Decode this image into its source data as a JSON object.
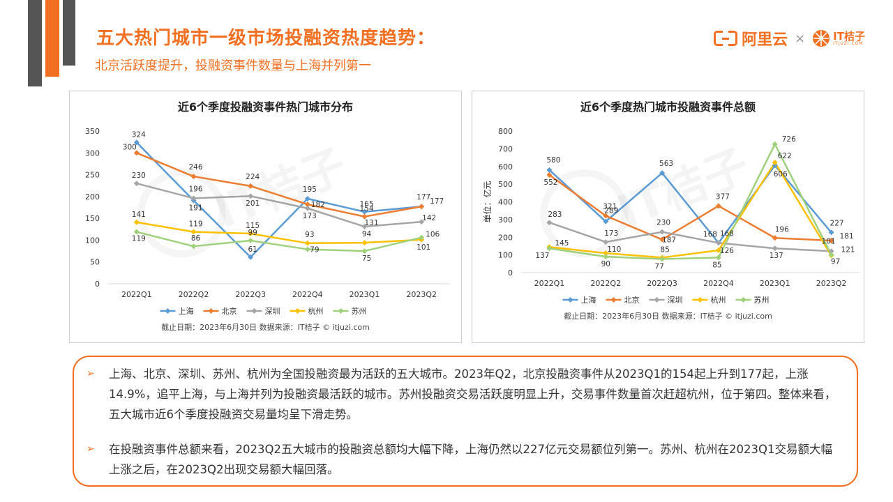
{
  "header": {
    "title": "五大热门城市一级市场投融资热度趋势：",
    "subtitle": "北京活跃度提升，投融资事件数量与上海并列第一"
  },
  "logos": {
    "aliyun": "阿里云",
    "times": "×",
    "itjuzi": "IT桔子",
    "itjuzi_url": "ITJUZI.COM"
  },
  "watermark": "IT桔子",
  "colors": {
    "accent": "#f36f21",
    "dark_bar": "#555555",
    "series": [
      "#5b9bd5",
      "#ed7d31",
      "#a5a5a5",
      "#ffc000",
      "#9fd17c"
    ]
  },
  "chart_data": [
    {
      "type": "line",
      "title": "近6个季度投融资事件热门城市分布",
      "categories": [
        "2022Q1",
        "2022Q2",
        "2022Q3",
        "2022Q4",
        "2023Q1",
        "2023Q2"
      ],
      "ylim": [
        0,
        350
      ],
      "yticks": [
        0,
        50,
        100,
        150,
        200,
        250,
        300,
        350
      ],
      "grid": false,
      "legend": "bottom",
      "series": [
        {
          "name": "上海",
          "values": [
            324,
            191,
            61,
            195,
            165,
            177
          ]
        },
        {
          "name": "北京",
          "values": [
            300,
            246,
            224,
            182,
            154,
            177
          ]
        },
        {
          "name": "深圳",
          "values": [
            230,
            196,
            201,
            173,
            131,
            142
          ]
        },
        {
          "name": "杭州",
          "values": [
            141,
            119,
            115,
            93,
            94,
            101
          ]
        },
        {
          "name": "苏州",
          "values": [
            119,
            86,
            99,
            79,
            75,
            106
          ]
        }
      ],
      "footnote": "截止日期：2023年6月30日    数据来源：IT桔子 © itjuzi.com"
    },
    {
      "type": "line",
      "title": "近6个季度热门城市投融资事件总额",
      "categories": [
        "2022Q1",
        "2022Q2",
        "2022Q3",
        "2022Q4",
        "2023Q1",
        "2023Q2"
      ],
      "ylabel": "单位：亿元",
      "ylim": [
        0,
        800
      ],
      "yticks": [
        0,
        100,
        200,
        300,
        400,
        500,
        600,
        700,
        800
      ],
      "grid": false,
      "legend": "bottom",
      "series": [
        {
          "name": "上海",
          "values": [
            580,
            289,
            563,
            168,
            606,
            227
          ]
        },
        {
          "name": "北京",
          "values": [
            552,
            321,
            187,
            377,
            196,
            181
          ]
        },
        {
          "name": "深圳",
          "values": [
            283,
            173,
            230,
            168,
            137,
            121
          ]
        },
        {
          "name": "杭州",
          "values": [
            145,
            110,
            85,
            126,
            622,
            97
          ]
        },
        {
          "name": "苏州",
          "values": [
            137,
            90,
            77,
            85,
            726,
            101
          ]
        }
      ],
      "footnote": "截止日期：2023年6月30日    数据来源：IT桔子 © itjuzi.com"
    }
  ],
  "summary": {
    "bullets": [
      "上海、北京、深圳、苏州、杭州为全国投融资最为活跃的五大城市。2023年Q2，北京投融资事件从2023Q1的154起上升到177起，上涨14.9%，追平上海，与上海并列为投融资最活跃的城市。苏州投融资交易活跃度明显上升，交易事件数量首次赶超杭州，位于第四。整体来看，五大城市近6个季度投融资交易量均呈下滑走势。",
      "在投融资事件总额来看，2023Q2五大城市的投融资总额均大幅下降，上海仍然以227亿元交易额位列第一。苏州、杭州在2023Q1交易额大幅上涨之后，在2023Q2出现交易额大幅回落。"
    ],
    "marker": "➢"
  }
}
